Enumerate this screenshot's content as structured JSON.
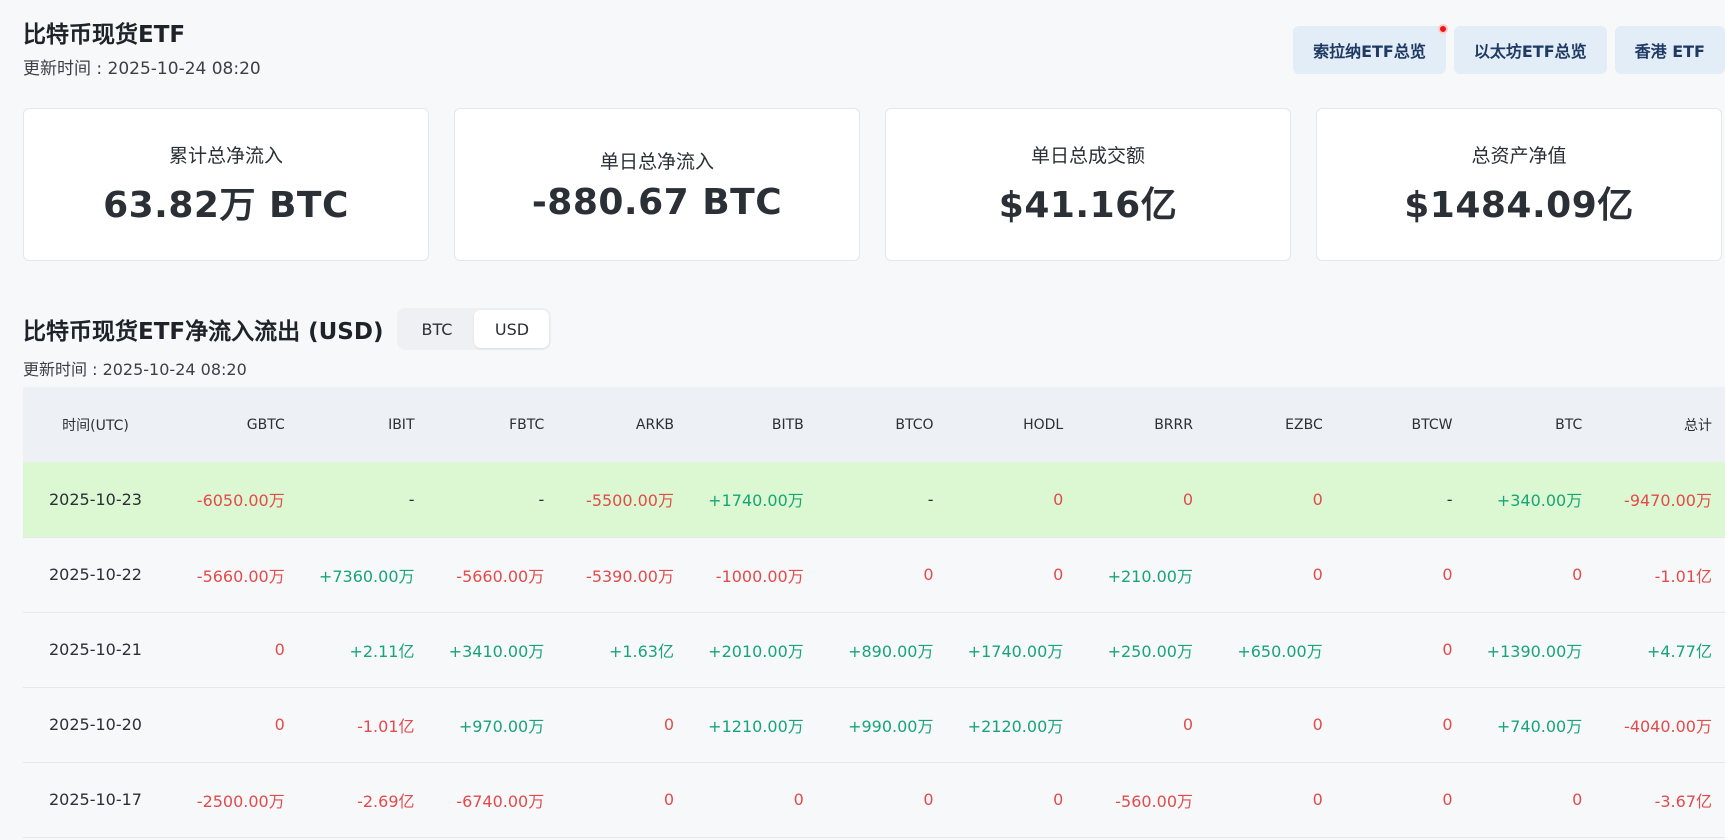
{
  "header": {
    "title": "比特币现货ETF",
    "update_time": "更新时间 : 2025-10-24 08:20"
  },
  "top_nav": [
    {
      "label": "索拉纳ETF总览",
      "has_dot": true
    },
    {
      "label": "以太坊ETF总览",
      "has_dot": false
    },
    {
      "label": "香港 ETF",
      "has_dot": false
    }
  ],
  "cards": [
    {
      "label": "累计总净流入",
      "value": "63.82万 BTC"
    },
    {
      "label": "单日总净流入",
      "value": "-880.67 BTC"
    },
    {
      "label": "单日总成交额",
      "value": "$41.16亿"
    },
    {
      "label": "总资产净值",
      "value": "$1484.09亿"
    }
  ],
  "section": {
    "title": "比特币现货ETF净流入流出 (USD)",
    "toggle": {
      "options": [
        "BTC",
        "USD"
      ],
      "active": "USD"
    },
    "update_time": "更新时间 : 2025-10-24 08:20"
  },
  "colors": {
    "negative": "#e24b4b",
    "positive": "#18a575",
    "highlight_row": "#dcf8d2",
    "header_row": "#edf1f5",
    "nav_bg": "#e3edf8"
  },
  "table": {
    "columns": [
      "时间(UTC)",
      "GBTC",
      "IBIT",
      "FBTC",
      "ARKB",
      "BITB",
      "BTCO",
      "HODL",
      "BRRR",
      "EZBC",
      "BTCW",
      "BTC",
      "总计"
    ],
    "rows": [
      {
        "highlight": true,
        "cells": [
          "2025-10-23",
          "-6050.00万",
          "-",
          "-",
          "-5500.00万",
          "+1740.00万",
          "-",
          "0",
          "0",
          "0",
          "-",
          "+340.00万",
          "-9470.00万"
        ]
      },
      {
        "highlight": false,
        "cells": [
          "2025-10-22",
          "-5660.00万",
          "+7360.00万",
          "-5660.00万",
          "-5390.00万",
          "-1000.00万",
          "0",
          "0",
          "+210.00万",
          "0",
          "0",
          "0",
          "-1.01亿"
        ]
      },
      {
        "highlight": false,
        "cells": [
          "2025-10-21",
          "0",
          "+2.11亿",
          "+3410.00万",
          "+1.63亿",
          "+2010.00万",
          "+890.00万",
          "+1740.00万",
          "+250.00万",
          "+650.00万",
          "0",
          "+1390.00万",
          "+4.77亿"
        ]
      },
      {
        "highlight": false,
        "cells": [
          "2025-10-20",
          "0",
          "-1.01亿",
          "+970.00万",
          "0",
          "+1210.00万",
          "+990.00万",
          "+2120.00万",
          "0",
          "0",
          "0",
          "+740.00万",
          "-4040.00万"
        ]
      },
      {
        "highlight": false,
        "cells": [
          "2025-10-17",
          "-2500.00万",
          "-2.69亿",
          "-6740.00万",
          "0",
          "0",
          "0",
          "0",
          "-560.00万",
          "0",
          "0",
          "0",
          "-3.67亿"
        ]
      }
    ]
  }
}
